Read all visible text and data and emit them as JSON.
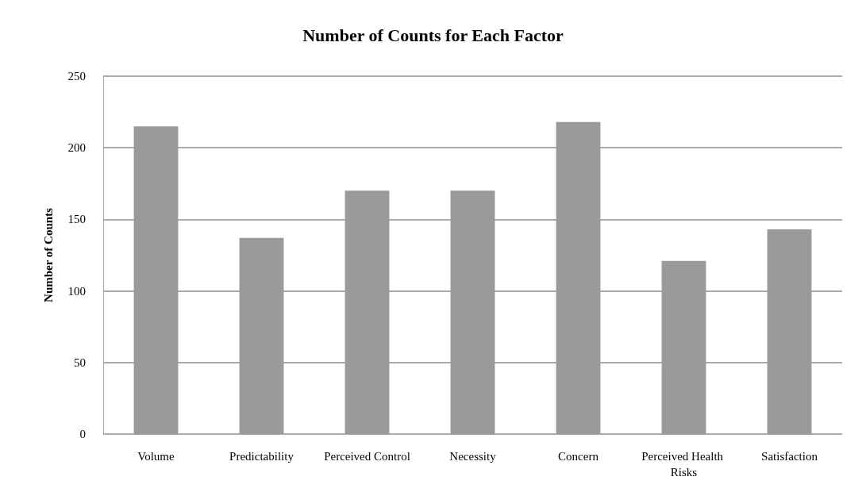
{
  "chart_data": {
    "type": "bar",
    "title": "Number of Counts for Each Factor",
    "ylabel": "Number of Counts",
    "categories": [
      "Volume",
      "Predictability",
      "Perceived Control",
      "Necessity",
      "Concern",
      "Perceived Health Risks",
      "Satisfaction"
    ],
    "values": [
      215,
      137,
      170,
      170,
      218,
      121,
      143
    ],
    "color": "#9a9a9a",
    "ylim": [
      0,
      250
    ],
    "yticks": [
      0,
      50,
      100,
      150,
      200,
      250
    ],
    "grid": "y"
  }
}
